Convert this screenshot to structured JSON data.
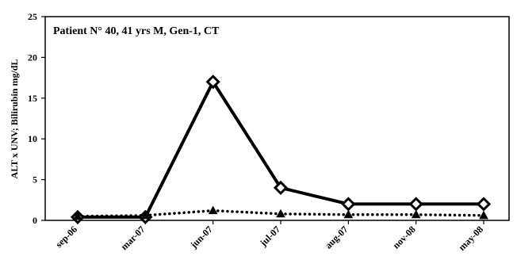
{
  "chart_data": {
    "type": "line",
    "annotation": "Patient N° 40, 41 yrs M, Gen-1, CT",
    "xlabel": "",
    "ylabel": "ALT x UNV; Bilirubin mg/dL",
    "categories": [
      "sep-06",
      "mar-07",
      "jun-07",
      "jul-07",
      "aug-07",
      "nov-08",
      "may-08"
    ],
    "ylim": [
      0,
      25
    ],
    "yticks": [
      0,
      5,
      10,
      15,
      20,
      25
    ],
    "grid": false,
    "series": [
      {
        "values": [
          0.4,
          0.4,
          17,
          4,
          2,
          2,
          2
        ],
        "marker": "diamond",
        "line_style": "solid",
        "color": "#000000"
      },
      {
        "values": [
          0.5,
          0.6,
          1.2,
          0.8,
          0.7,
          0.7,
          0.6
        ],
        "marker": "triangle",
        "line_style": "dotted",
        "color": "#000000"
      }
    ]
  }
}
